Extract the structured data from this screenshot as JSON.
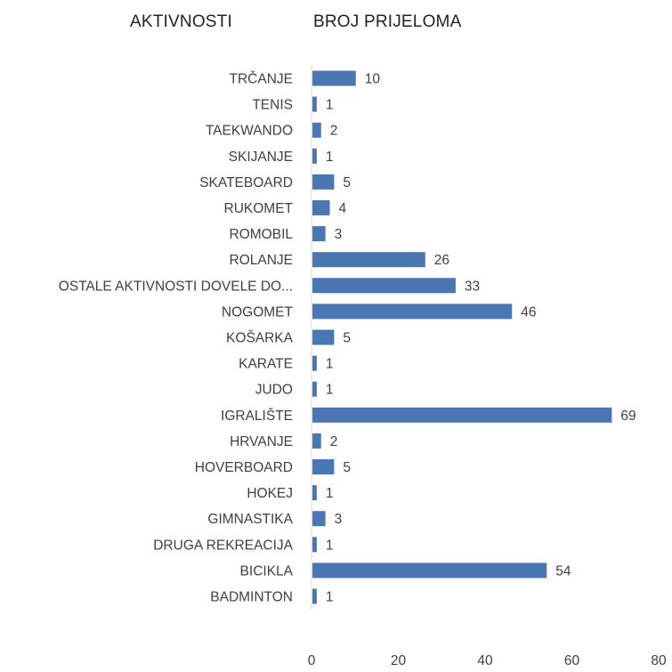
{
  "headers": {
    "left": "AKTIVNOSTI",
    "right": "BROJ PRIJELOMA"
  },
  "colors": {
    "bar": "#4a76b3",
    "label": "#404040",
    "axis": "#d9d9d9"
  },
  "chart_data": {
    "type": "bar",
    "orientation": "horizontal",
    "categories": [
      "TRČANJE",
      "TENIS",
      "TAEKWANDO",
      "SKIJANJE",
      "SKATEBOARD",
      "RUKOMET",
      "ROMOBIL",
      "ROLANJE",
      "OSTALE AKTIVNOSTI DOVELE DO...",
      "NOGOMET",
      "KOŠARKA",
      "KARATE",
      "JUDO",
      "IGRALIŠTE",
      "HRVANJE",
      "HOVERBOARD",
      "HOKEJ",
      "GIMNASTIKA",
      "DRUGA REKREACIJA",
      "BICIKLA",
      "BADMINTON"
    ],
    "values": [
      10,
      1,
      2,
      1,
      5,
      4,
      3,
      26,
      33,
      46,
      5,
      1,
      1,
      69,
      2,
      5,
      1,
      3,
      1,
      54,
      1
    ],
    "xlim": [
      0,
      80
    ],
    "xticks": [
      0,
      20,
      40,
      60,
      80
    ],
    "data_labels": true,
    "grid": false
  }
}
